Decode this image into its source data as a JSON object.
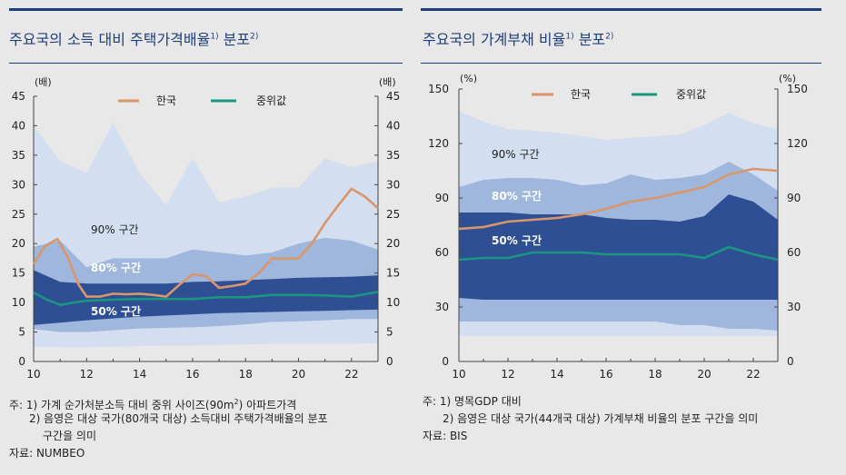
{
  "charts": [
    {
      "title": "주요국의 소득 대비 주택가격배율",
      "title_sup": "1)",
      "title_tail": " 분포",
      "title_sup2": "2)",
      "notes": [
        "주: 1) 가계 순가처분소득 대비 중위 사이즈(90m",
        "2",
        ") 아파트가격",
        "2) 음영은 대상 국가(80개국 대상) 소득대비 주택가격배율의 분포",
        "구간을 의미",
        "자료: NUMBEO"
      ]
    },
    {
      "title": "주요국의 가계부채 비율",
      "title_sup": "1)",
      "title_tail": " 분포",
      "title_sup2": "2)",
      "notes": [
        "주: 1) 명목GDP 대비",
        "2) 음영은 대상 국가(44개국 대상) 가계부채 비율의 분포 구간을 의미",
        "자료: BIS"
      ]
    }
  ],
  "colors": {
    "band90": "#d3def0",
    "band80": "#9fb7dd",
    "band50": "#2f4f95",
    "korea": "#d9966a",
    "median": "#1a9680",
    "title": "#1f3f7a",
    "background": "#e8e8e8"
  },
  "chart_data": [
    {
      "type": "area",
      "unit_left": "(배)",
      "unit_right": "(배)",
      "x_ticks": [
        "10",
        "12",
        "14",
        "16",
        "18",
        "20",
        "22"
      ],
      "xlim": [
        10,
        23
      ],
      "y_ticks": [
        "0",
        "5",
        "10",
        "15",
        "20",
        "25",
        "30",
        "35",
        "40",
        "45"
      ],
      "ylim": [
        0,
        45
      ],
      "legend": [
        "한국",
        "중위값"
      ],
      "legend_placement": "top-center",
      "band_labels": [
        "90% 구간",
        "80% 구간",
        "50% 구간"
      ],
      "x": [
        10,
        11,
        12,
        13,
        14,
        15,
        16,
        17,
        18,
        19,
        20,
        21,
        22,
        23
      ],
      "band_90": {
        "lower": [
          2.5,
          2.4,
          2.4,
          2.5,
          2.6,
          2.7,
          2.7,
          2.8,
          2.9,
          3.0,
          3.0,
          3.0,
          3.0,
          3.1
        ],
        "upper": [
          40,
          34,
          32,
          40.5,
          32,
          26.5,
          34.5,
          27,
          28,
          29.5,
          29.5,
          34.5,
          33,
          34
        ]
      },
      "band_80": {
        "lower": [
          5.5,
          5.0,
          5.0,
          5.3,
          5.6,
          5.7,
          5.8,
          6.0,
          6.3,
          6.7,
          6.8,
          7.0,
          7.2,
          7.2
        ],
        "upper": [
          19.5,
          20.5,
          16,
          17.5,
          17.5,
          17.5,
          19,
          18.5,
          18,
          18.5,
          20,
          21,
          20.5,
          19
        ]
      },
      "band_50": {
        "lower": [
          6.2,
          6.6,
          7.0,
          7.3,
          7.6,
          7.8,
          8.0,
          8.2,
          8.3,
          8.4,
          8.5,
          8.6,
          8.7,
          8.8
        ],
        "upper": [
          15.5,
          13.5,
          13.2,
          13.2,
          13.2,
          13.2,
          13.5,
          13.6,
          13.8,
          14.0,
          14.2,
          14.3,
          14.4,
          14.6
        ]
      },
      "series": [
        {
          "name": "한국",
          "x": [
            10,
            10.4,
            10.9,
            11.3,
            11.7,
            12,
            12.5,
            13,
            13.5,
            14,
            14.5,
            15,
            15.5,
            16,
            16.5,
            17,
            17.5,
            18,
            18.5,
            19,
            19.5,
            20,
            20.5,
            21,
            21.5,
            22,
            22.5,
            23
          ],
          "values": [
            16.5,
            19.5,
            20.8,
            17.5,
            13.0,
            11.0,
            11.0,
            11.5,
            11.4,
            11.5,
            11.3,
            11.0,
            13.0,
            14.8,
            14.5,
            12.5,
            12.8,
            13.2,
            15.0,
            17.5,
            17.4,
            17.5,
            20.0,
            23.5,
            26.5,
            29.3,
            28.0,
            26.0
          ]
        },
        {
          "name": "중위값",
          "x": [
            10,
            10.5,
            11,
            11.5,
            12,
            13,
            14,
            15,
            16,
            17,
            18,
            19,
            20,
            21,
            22,
            23
          ],
          "values": [
            11.7,
            10.5,
            9.6,
            10.0,
            10.3,
            10.5,
            10.6,
            10.6,
            10.6,
            10.9,
            10.9,
            11.3,
            11.3,
            11.2,
            11.0,
            11.8
          ]
        }
      ]
    },
    {
      "type": "area",
      "unit_left": "(%)",
      "unit_right": "(%)",
      "x_ticks": [
        "10",
        "12",
        "14",
        "16",
        "18",
        "20",
        "22"
      ],
      "xlim": [
        10,
        23
      ],
      "y_ticks": [
        "0",
        "30",
        "60",
        "90",
        "120",
        "150"
      ],
      "ylim": [
        0,
        150
      ],
      "legend": [
        "한국",
        "중위값"
      ],
      "legend_placement": "top-center",
      "band_labels": [
        "90% 구간",
        "80% 구간",
        "50% 구간"
      ],
      "x": [
        10,
        11,
        12,
        13,
        14,
        15,
        16,
        17,
        18,
        19,
        20,
        21,
        22,
        23
      ],
      "band_90": {
        "lower": [
          14,
          14,
          14,
          14,
          14,
          14,
          14,
          14,
          14,
          14,
          14,
          14,
          14,
          14
        ],
        "upper": [
          138,
          132,
          128,
          127,
          126,
          124,
          122,
          123,
          124,
          125,
          130,
          137,
          131,
          128
        ]
      },
      "band_80": {
        "lower": [
          22,
          22,
          22,
          22,
          22,
          22,
          22,
          22,
          22,
          20,
          20,
          18,
          18,
          17
        ],
        "upper": [
          96,
          100,
          101,
          101,
          100,
          97,
          98,
          103,
          100,
          101,
          103,
          110,
          103,
          94
        ]
      },
      "band_50": {
        "lower": [
          35,
          34,
          34,
          34,
          34,
          34,
          34,
          34,
          34,
          34,
          34,
          34,
          34,
          34
        ],
        "upper": [
          82,
          82,
          82,
          81,
          81,
          81,
          79,
          78,
          78,
          77,
          80,
          92,
          88,
          78
        ]
      },
      "series": [
        {
          "name": "한국",
          "x": [
            10,
            11,
            12,
            13,
            14,
            15,
            16,
            17,
            18,
            19,
            20,
            21,
            22,
            23
          ],
          "values": [
            73,
            74,
            77,
            78,
            79,
            81,
            84,
            88,
            90,
            93,
            96,
            103,
            106,
            105
          ]
        },
        {
          "name": "중위값",
          "x": [
            10,
            11,
            12,
            13,
            14,
            15,
            16,
            17,
            18,
            19,
            20,
            21,
            22,
            23
          ],
          "values": [
            56,
            57,
            57,
            60,
            60,
            60,
            59,
            59,
            59,
            59,
            57,
            63,
            59,
            56
          ]
        }
      ]
    }
  ]
}
